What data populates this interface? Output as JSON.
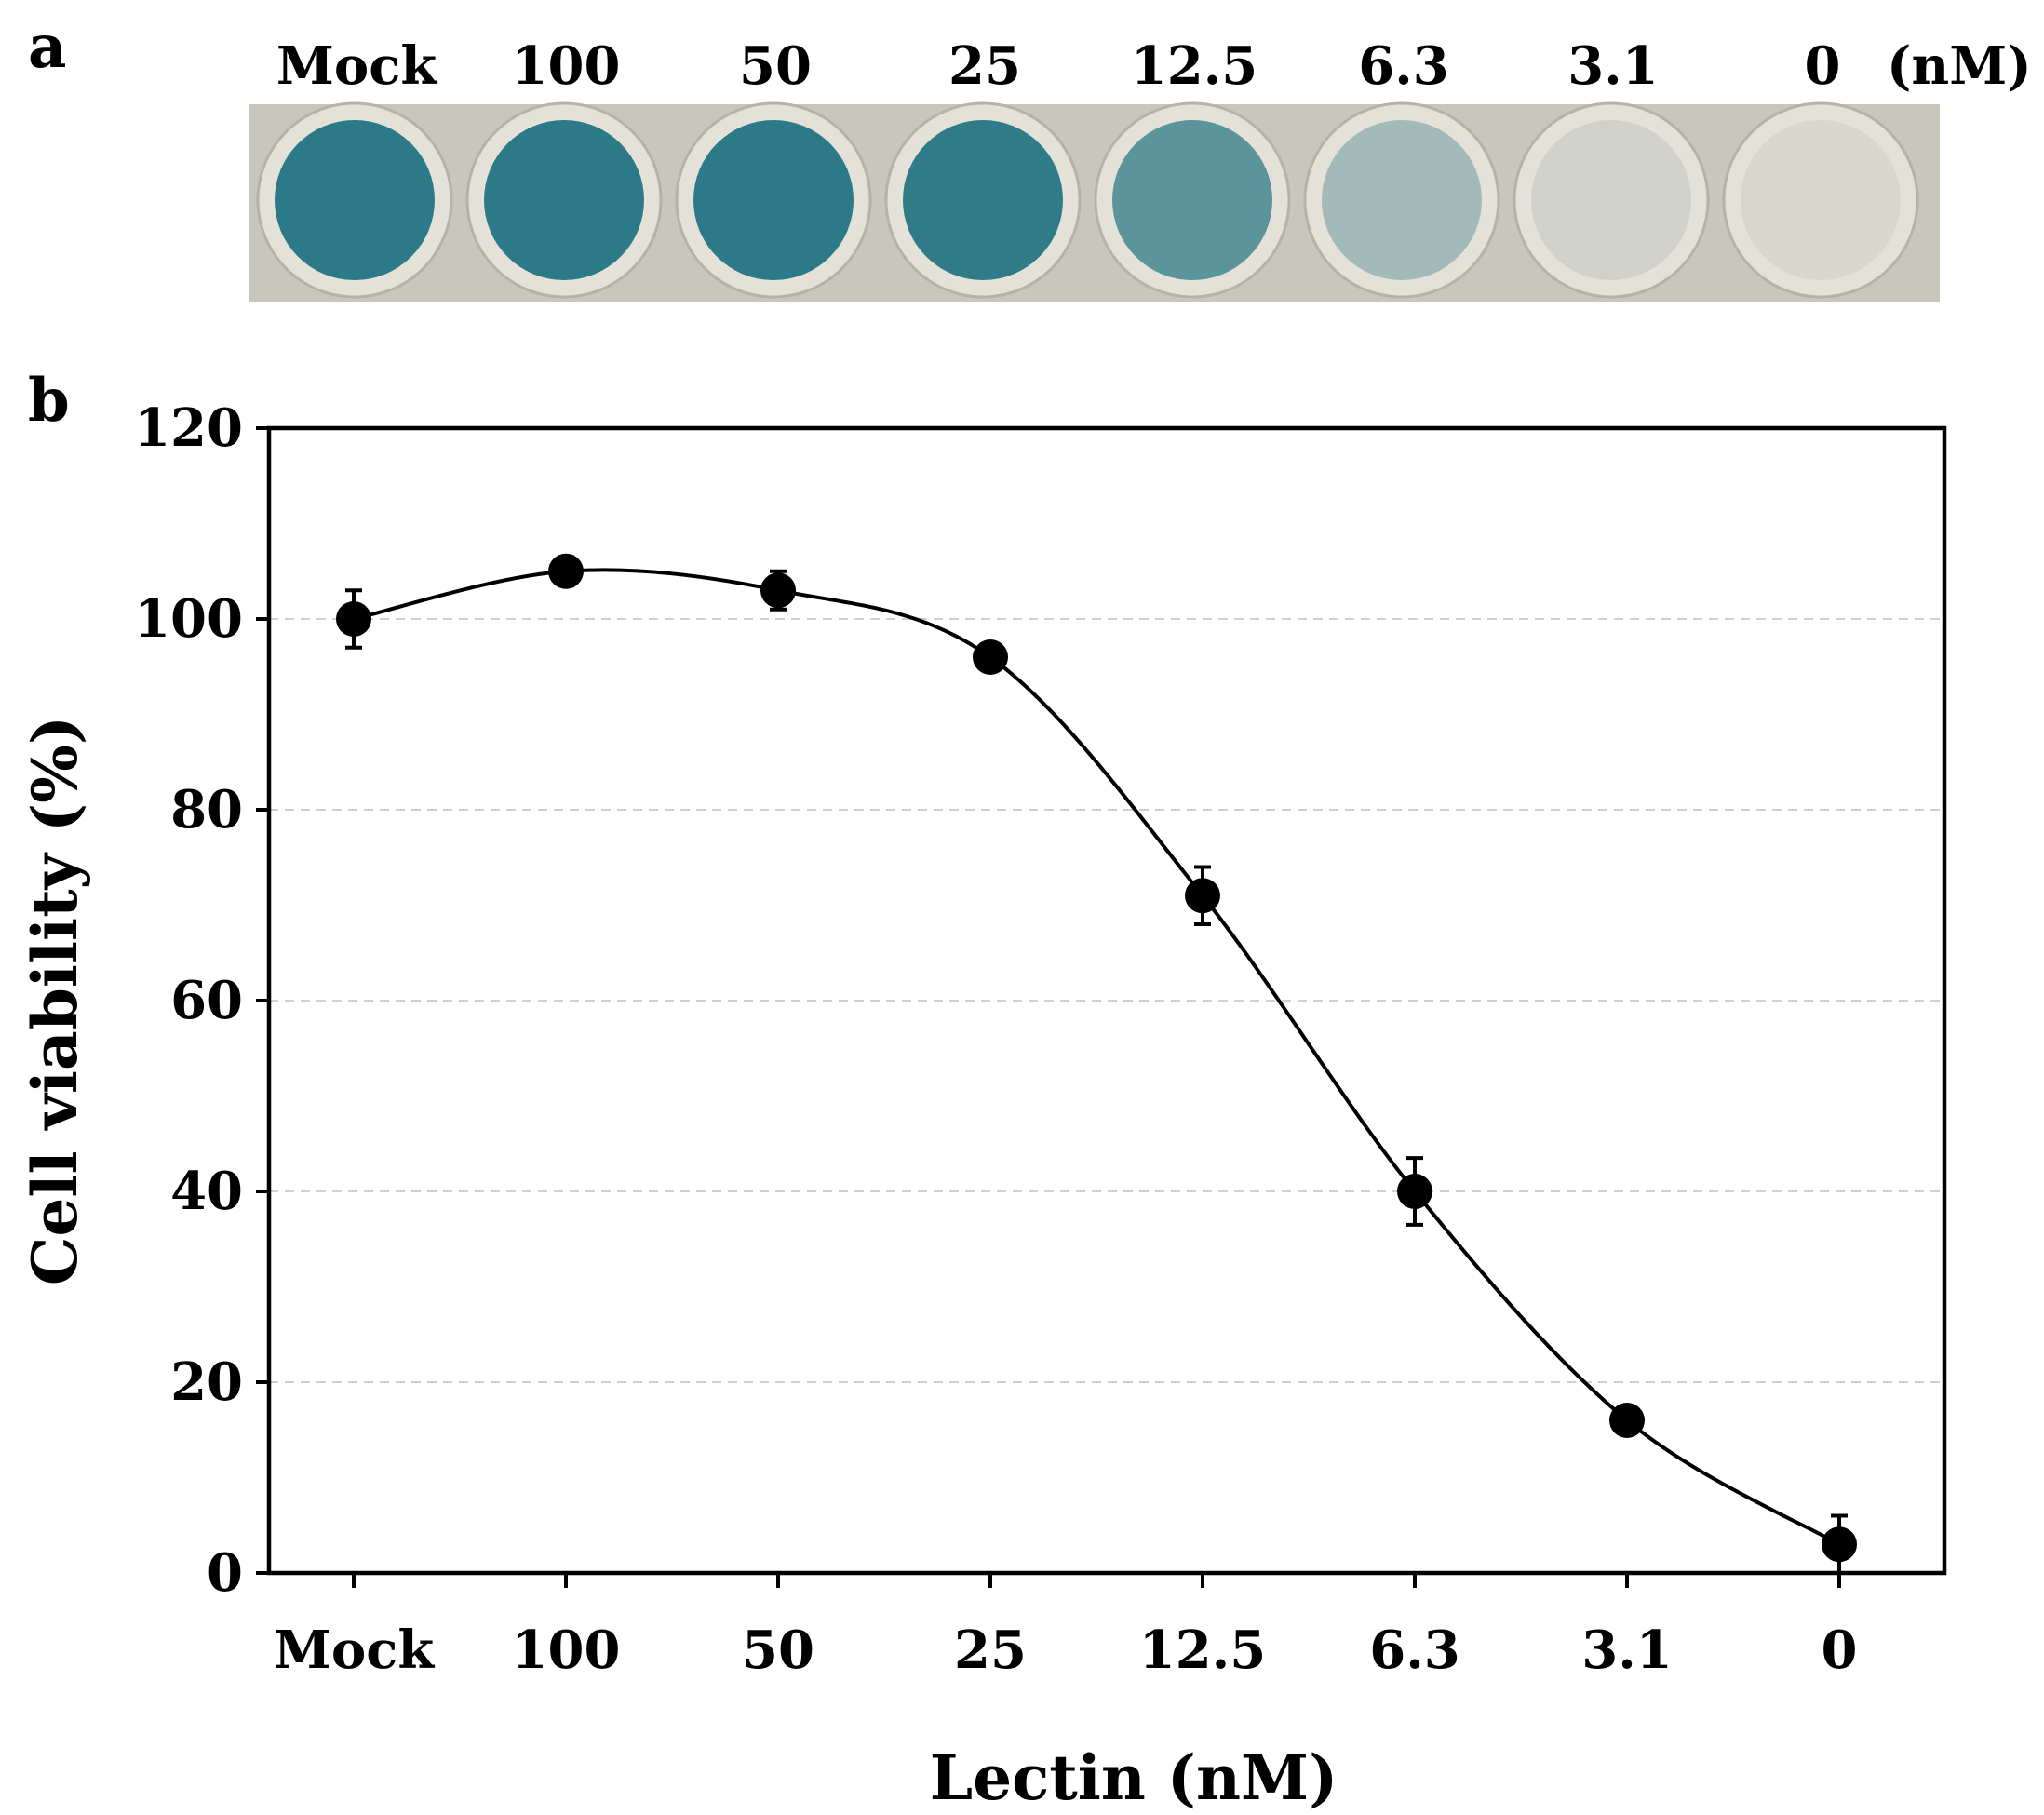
{
  "panel_a": {
    "letter": "a",
    "well_labels": [
      "Mock",
      "100",
      "50",
      "25",
      "12.5",
      "6.3",
      "3.1",
      "0"
    ],
    "unit_label": "(nM)",
    "well_intensity": [
      1.0,
      1.0,
      1.0,
      0.98,
      0.72,
      0.3,
      0.05,
      0.0
    ],
    "colors": {
      "plate": "#c9c7bb",
      "well_rim": "#e4e2d8",
      "well_empty": "#d8d6cd",
      "stain": "#2c7a87"
    }
  },
  "panel_b": {
    "letter": "b"
  },
  "chart_data": {
    "type": "scatter",
    "title": "",
    "xlabel": "Lectin (nM)",
    "ylabel": "Cell viability (%)",
    "categories": [
      "Mock",
      "100",
      "50",
      "25",
      "12.5",
      "6.3",
      "3.1",
      "0"
    ],
    "series": [
      {
        "name": "Cell viability",
        "values": [
          100,
          105,
          103,
          96,
          71,
          40,
          16,
          3
        ],
        "errors": [
          3,
          1.5,
          2,
          1,
          3,
          3.5,
          1,
          3
        ],
        "fit_curve": "sigmoidal"
      }
    ],
    "ylim": [
      0,
      120
    ],
    "yticks": [
      0,
      20,
      40,
      60,
      80,
      100,
      120
    ],
    "grid": "horizontal-dashed",
    "colors": {
      "marker": "#000000",
      "grid": "#cfcfcf"
    }
  }
}
